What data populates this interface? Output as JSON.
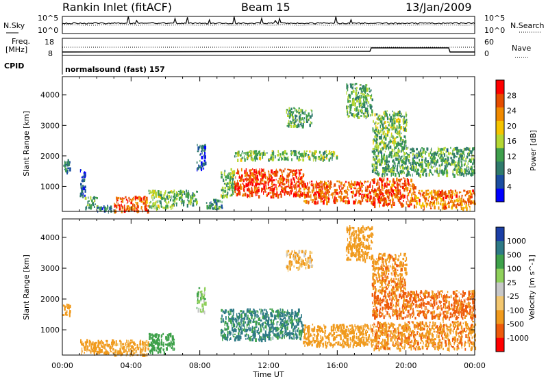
{
  "header": {
    "station": "Rankin Inlet (fitACF)",
    "beam": "Beam 15",
    "date": "13/Jan/2009"
  },
  "top_panel": {
    "left_label": "N.Sky",
    "right_label": "N.Search",
    "ticks_left": [
      "10^5",
      "10^0"
    ],
    "ticks_right": [
      "10^5",
      "10^0"
    ]
  },
  "freq_panel": {
    "left_label_1": "Freq.",
    "left_label_2": "[MHz]",
    "ticks_left": [
      "18",
      "8"
    ],
    "ticks_right": [
      "60",
      "0"
    ],
    "right_label": "Nave"
  },
  "cpid_panel": {
    "label": "CPID",
    "value": "normalsound (fast) 157"
  },
  "time_axis": {
    "label": "Time UT",
    "ticks": [
      "00:00",
      "04:00",
      "08:00",
      "12:00",
      "16:00",
      "20:00",
      "00:00"
    ]
  },
  "colors": {
    "power_scale": [
      "#0000ff",
      "#1b4ea1",
      "#2f7a6b",
      "#3f9f4c",
      "#b5d733",
      "#f5c400",
      "#f08a00",
      "#e64d00",
      "#ff0000"
    ],
    "velocity_scale": [
      "#1b3fa6",
      "#2e7a86",
      "#3ea14a",
      "#8fd05b",
      "#c8c8c8",
      "#f3c770",
      "#f09a1d",
      "#ee5a0b",
      "#ff0000"
    ]
  },
  "chart_data": [
    {
      "type": "heatmap",
      "quantity": "Power",
      "ylabel": "Slant Range [km]",
      "xlabel": "",
      "x_range_hours": [
        0,
        24
      ],
      "ylim": [
        180,
        4600
      ],
      "yticks": [
        1000,
        2000,
        3000,
        4000
      ],
      "colorbar": {
        "label": "Power [dB]",
        "ticks": [
          4,
          8,
          12,
          16,
          20,
          24,
          28
        ],
        "range": [
          0,
          32
        ]
      },
      "echo_regions": [
        {
          "t": [
            0.0,
            0.5
          ],
          "r": [
            1500,
            1900
          ],
          "level": 8
        },
        {
          "t": [
            1.0,
            1.3
          ],
          "r": [
            700,
            1700
          ],
          "level": 6
        },
        {
          "t": [
            1.3,
            2.0
          ],
          "r": [
            300,
            700
          ],
          "level": 12
        },
        {
          "t": [
            2.0,
            3.0
          ],
          "r": [
            200,
            400
          ],
          "level": 8
        },
        {
          "t": [
            3.0,
            5.0
          ],
          "r": [
            200,
            700
          ],
          "level": 26
        },
        {
          "t": [
            5.0,
            6.5
          ],
          "r": [
            300,
            900
          ],
          "level": 14
        },
        {
          "t": [
            6.5,
            7.8
          ],
          "r": [
            400,
            900
          ],
          "level": 12
        },
        {
          "t": [
            7.8,
            8.3
          ],
          "r": [
            1600,
            2400
          ],
          "level": 6
        },
        {
          "t": [
            8.3,
            9.3
          ],
          "r": [
            300,
            600
          ],
          "level": 10
        },
        {
          "t": [
            9.2,
            10.0
          ],
          "r": [
            700,
            1600
          ],
          "level": 14
        },
        {
          "t": [
            10.0,
            14.0
          ],
          "r": [
            700,
            1600
          ],
          "level": 28
        },
        {
          "t": [
            14.0,
            18.0
          ],
          "r": [
            500,
            1200
          ],
          "level": 26
        },
        {
          "t": [
            18.0,
            20.5
          ],
          "r": [
            400,
            1300
          ],
          "level": 26
        },
        {
          "t": [
            20.5,
            24.0
          ],
          "r": [
            300,
            900
          ],
          "level": 24
        },
        {
          "t": [
            18.0,
            24.0
          ],
          "r": [
            1400,
            2300
          ],
          "level": 12
        },
        {
          "t": [
            18.0,
            20.0
          ],
          "r": [
            2300,
            3500
          ],
          "level": 14
        },
        {
          "t": [
            16.5,
            18.0
          ],
          "r": [
            3300,
            4400
          ],
          "level": 12
        },
        {
          "t": [
            13.0,
            14.5
          ],
          "r": [
            3000,
            3600
          ],
          "level": 12
        },
        {
          "t": [
            10.0,
            16.0
          ],
          "r": [
            1900,
            2200
          ],
          "level": 14
        }
      ]
    },
    {
      "type": "heatmap",
      "quantity": "Velocity",
      "ylabel": "Slant Range [km]",
      "xlabel": "Time UT",
      "x_range_hours": [
        0,
        24
      ],
      "ylim": [
        180,
        4600
      ],
      "yticks": [
        1000,
        2000,
        3000,
        4000
      ],
      "colorbar": {
        "label": "Velocity [m s^-1]",
        "ticks": [
          1000,
          500,
          100,
          25,
          -25,
          -100,
          -500,
          -1000
        ]
      },
      "echo_regions": [
        {
          "t": [
            0.0,
            0.5
          ],
          "r": [
            1500,
            1900
          ],
          "velocity": -300
        },
        {
          "t": [
            1.0,
            3.0
          ],
          "r": [
            250,
            700
          ],
          "velocity": -200
        },
        {
          "t": [
            3.0,
            5.0
          ],
          "r": [
            200,
            700
          ],
          "velocity": -150
        },
        {
          "t": [
            5.0,
            6.5
          ],
          "r": [
            300,
            900
          ],
          "velocity": 200
        },
        {
          "t": [
            7.8,
            8.3
          ],
          "r": [
            1600,
            2400
          ],
          "velocity": 80
        },
        {
          "t": [
            9.2,
            14.0
          ],
          "r": [
            700,
            1700
          ],
          "velocity": 600
        },
        {
          "t": [
            14.0,
            18.0
          ],
          "r": [
            500,
            1200
          ],
          "velocity": -250
        },
        {
          "t": [
            18.0,
            24.0
          ],
          "r": [
            400,
            1300
          ],
          "velocity": -400
        },
        {
          "t": [
            18.0,
            24.0
          ],
          "r": [
            1400,
            2300
          ],
          "velocity": -600
        },
        {
          "t": [
            18.0,
            20.0
          ],
          "r": [
            2300,
            3500
          ],
          "velocity": -400
        },
        {
          "t": [
            16.5,
            18.0
          ],
          "r": [
            3300,
            4400
          ],
          "velocity": -200
        },
        {
          "t": [
            13.0,
            14.5
          ],
          "r": [
            3000,
            3600
          ],
          "velocity": -100
        }
      ]
    }
  ]
}
